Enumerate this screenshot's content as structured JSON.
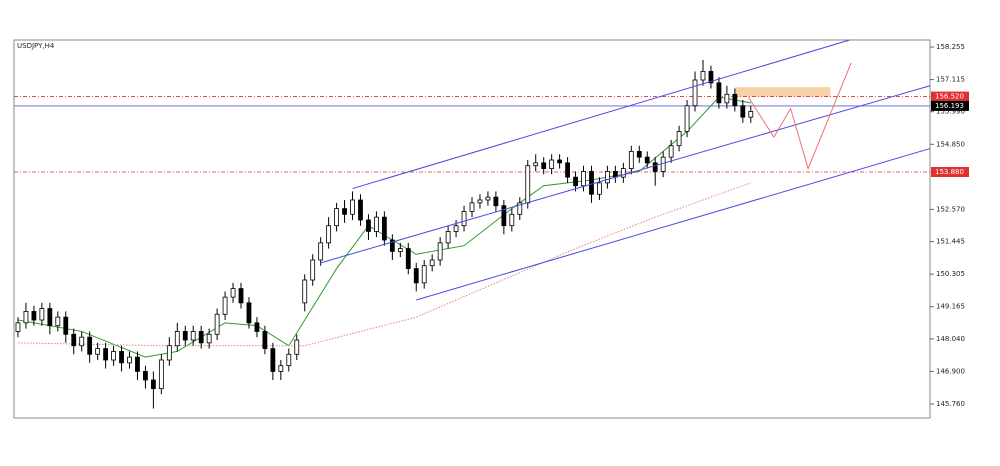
{
  "chart_data": {
    "type": "candlestick",
    "title": "USDJPY,H4",
    "open": [
      148.3,
      148.6,
      149.0,
      148.7,
      149.1,
      148.5,
      148.8,
      148.2,
      147.8,
      148.1,
      147.5,
      147.7,
      147.3,
      147.6,
      147.2,
      147.4,
      146.9,
      146.6,
      146.3,
      147.3,
      147.8,
      148.3,
      148.0,
      148.3,
      147.9,
      148.2,
      148.9,
      149.5,
      149.8,
      149.3,
      148.6,
      148.3,
      147.7,
      146.9,
      147.1,
      147.5,
      149.3,
      150.1,
      150.8,
      151.4,
      152.0,
      152.6,
      152.4,
      152.9,
      152.2,
      151.8,
      152.3,
      151.5,
      151.1,
      151.2,
      150.5,
      150.0,
      150.6,
      150.8,
      151.4,
      151.8,
      152.0,
      152.5,
      152.8,
      152.9,
      153.0,
      152.7,
      152.0,
      152.4,
      152.8,
      154.1,
      154.2,
      154.0,
      154.3,
      154.2,
      153.7,
      153.4,
      153.9,
      153.1,
      153.5,
      153.9,
      153.7,
      154.0,
      154.6,
      154.4,
      154.2,
      153.9,
      154.4,
      154.8,
      155.3,
      156.2,
      157.1,
      157.4,
      157.0,
      156.3,
      156.6,
      156.2,
      155.8
    ],
    "high": [
      148.8,
      149.3,
      149.2,
      149.3,
      149.3,
      149.0,
      149.0,
      148.4,
      148.3,
      148.3,
      147.9,
      147.9,
      147.8,
      147.8,
      147.6,
      147.6,
      147.1,
      146.9,
      147.5,
      148.1,
      148.6,
      148.5,
      148.5,
      148.5,
      148.4,
      149.1,
      149.7,
      150.0,
      150.0,
      149.5,
      148.8,
      148.5,
      147.9,
      147.3,
      147.7,
      148.2,
      150.3,
      151.0,
      151.6,
      152.3,
      152.8,
      152.9,
      153.2,
      153.1,
      152.4,
      152.5,
      152.5,
      151.7,
      151.4,
      151.4,
      150.7,
      150.8,
      151.0,
      151.6,
      152.0,
      152.2,
      152.7,
      153.0,
      153.1,
      153.2,
      153.2,
      152.9,
      152.6,
      153.0,
      154.3,
      154.5,
      154.4,
      154.5,
      154.5,
      154.4,
      153.9,
      154.1,
      154.1,
      153.7,
      154.1,
      154.1,
      154.2,
      154.8,
      154.8,
      154.6,
      154.4,
      154.6,
      155.0,
      155.5,
      156.4,
      157.4,
      157.8,
      157.6,
      157.2,
      156.9,
      156.8,
      156.4,
      156.2
    ],
    "low": [
      148.1,
      148.4,
      148.5,
      148.5,
      148.2,
      148.3,
      147.9,
      147.5,
      147.6,
      147.2,
      147.3,
      147.0,
      147.1,
      146.9,
      147.0,
      146.6,
      146.3,
      145.6,
      146.1,
      147.1,
      147.6,
      147.8,
      147.8,
      147.7,
      147.7,
      148.0,
      148.7,
      149.3,
      149.1,
      148.4,
      148.1,
      147.5,
      146.6,
      146.6,
      146.9,
      147.3,
      149.0,
      149.9,
      150.6,
      151.2,
      151.8,
      152.1,
      152.2,
      152.0,
      151.5,
      151.6,
      151.3,
      150.8,
      150.9,
      150.3,
      149.7,
      149.8,
      150.4,
      150.6,
      151.2,
      151.6,
      151.8,
      152.3,
      152.6,
      152.7,
      152.5,
      151.7,
      151.8,
      152.2,
      152.6,
      153.9,
      153.8,
      153.8,
      154.0,
      153.5,
      153.2,
      153.2,
      152.8,
      152.9,
      153.3,
      153.5,
      153.5,
      153.8,
      154.2,
      154.0,
      153.4,
      153.7,
      154.2,
      154.6,
      155.1,
      156.0,
      156.9,
      156.8,
      156.1,
      156.1,
      156.0,
      155.6,
      155.6
    ],
    "close": [
      148.6,
      149.0,
      148.7,
      149.1,
      148.5,
      148.8,
      148.2,
      147.8,
      148.1,
      147.5,
      147.7,
      147.3,
      147.6,
      147.2,
      147.4,
      146.9,
      146.6,
      146.3,
      147.3,
      147.8,
      148.3,
      148.0,
      148.3,
      147.9,
      148.2,
      148.9,
      149.5,
      149.8,
      149.3,
      148.6,
      148.3,
      147.7,
      146.9,
      147.1,
      147.5,
      148.0,
      150.1,
      150.8,
      151.4,
      152.0,
      152.6,
      152.4,
      152.9,
      152.2,
      151.8,
      152.3,
      151.5,
      151.1,
      151.2,
      150.5,
      150.0,
      150.6,
      150.8,
      151.4,
      151.8,
      152.0,
      152.5,
      152.8,
      152.9,
      153.0,
      152.7,
      152.0,
      152.4,
      152.8,
      154.1,
      154.2,
      154.0,
      154.3,
      154.2,
      153.7,
      153.4,
      153.9,
      153.1,
      153.5,
      153.9,
      153.7,
      154.0,
      154.6,
      154.4,
      154.2,
      153.9,
      154.4,
      154.8,
      155.3,
      156.2,
      157.1,
      157.4,
      157.0,
      156.3,
      156.6,
      156.2,
      155.8,
      156.0
    ],
    "up_color": "#ffffff",
    "down_color": "#000000",
    "xlim": [
      -0.5,
      114.5
    ],
    "ylim": [
      145.27,
      158.5
    ],
    "yticks": [
      158.255,
      157.115,
      {
        "value": 155.99,
        "label": "155.990"
      },
      {
        "value": 154.85,
        "label": "154.850"
      },
      {
        "value": 152.57,
        "label": "152.570"
      },
      151.445,
      150.305,
      149.165,
      {
        "value": 148.04,
        "label": "148.040"
      },
      {
        "value": 146.9,
        "label": "146.900"
      },
      {
        "value": 145.76,
        "label": "145.760"
      }
    ],
    "moving_averages": [
      {
        "color": "#2e9b2e",
        "dotted": false,
        "x": [
          0,
          8,
          16,
          20,
          26,
          30,
          34,
          40,
          44,
          50,
          56,
          62,
          66,
          72,
          78,
          84,
          88,
          92
        ],
        "values": [
          148.7,
          148.3,
          147.4,
          147.6,
          148.6,
          148.5,
          147.8,
          150.5,
          152.0,
          151.0,
          151.3,
          152.6,
          153.4,
          153.6,
          153.9,
          155.3,
          156.5,
          156.3
        ]
      },
      {
        "color": "#e88080",
        "dotted": true,
        "x": [
          0,
          18,
          36,
          50,
          60,
          70,
          80,
          92
        ],
        "values": [
          147.9,
          147.8,
          147.8,
          148.8,
          150.0,
          151.2,
          152.3,
          153.5
        ]
      }
    ],
    "levels": [
      {
        "value": 156.52,
        "label": "156.520",
        "color": "#e03030",
        "dash": true
      },
      {
        "value": 156.193,
        "label": "156.193",
        "color": "#5b5bd6",
        "label_color": "#000000",
        "dash": false
      },
      {
        "value": 153.88,
        "label": "153.880",
        "color": "#e03030",
        "dash": true
      }
    ],
    "lines": [
      {
        "color": "#4a4ae0",
        "x": [
          42,
          104.4
        ],
        "y": [
          153.3,
          158.5
        ]
      },
      {
        "color": "#4a4ae0",
        "x": [
          38,
          114.5
        ],
        "y": [
          150.7,
          156.9
        ]
      },
      {
        "color": "#4a4ae0",
        "x": [
          50,
          114.5
        ],
        "y": [
          149.4,
          154.7
        ]
      },
      {
        "color": "#f07070",
        "x": [
          91.7,
          94.9,
          97,
          99.2,
          104.6
        ],
        "y": [
          156.5,
          155.1,
          156.1,
          154.0,
          157.7
        ]
      }
    ],
    "zone": {
      "color": "#f8c99a",
      "x": [
        90,
        102
      ],
      "y": [
        156.52,
        156.85
      ]
    }
  }
}
